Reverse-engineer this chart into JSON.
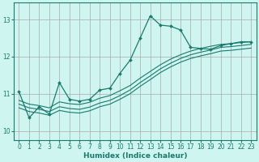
{
  "background_color": "#cef5f0",
  "grid_color": "#aaaaaa",
  "line_color": "#1a7a6e",
  "xlabel": "Humidex (Indice chaleur)",
  "xlim": [
    -0.5,
    23.5
  ],
  "ylim": [
    9.75,
    13.45
  ],
  "yticks": [
    10,
    11,
    12,
    13
  ],
  "xticks": [
    0,
    1,
    2,
    3,
    4,
    5,
    6,
    7,
    8,
    9,
    10,
    11,
    12,
    13,
    14,
    15,
    16,
    17,
    18,
    19,
    20,
    21,
    22,
    23
  ],
  "series": [
    {
      "x": [
        0,
        1,
        2,
        3,
        4,
        5,
        6,
        7,
        8,
        9,
        10,
        11,
        12,
        13,
        14,
        15,
        16,
        17,
        18,
        19,
        20,
        21,
        22,
        23
      ],
      "y": [
        11.05,
        10.35,
        10.65,
        10.45,
        11.3,
        10.85,
        10.8,
        10.85,
        11.1,
        11.15,
        11.55,
        11.9,
        12.5,
        13.1,
        12.85,
        12.82,
        12.72,
        12.25,
        12.22,
        12.2,
        12.3,
        12.35,
        12.4,
        12.4
      ],
      "marker": true
    },
    {
      "x": [
        0,
        1,
        2,
        3,
        4,
        5,
        6,
        7,
        8,
        9,
        10,
        11,
        12,
        13,
        14,
        15,
        16,
        17,
        18,
        19,
        20,
        21,
        22,
        23
      ],
      "y": [
        10.82,
        10.72,
        10.68,
        10.62,
        10.78,
        10.73,
        10.71,
        10.77,
        10.88,
        10.95,
        11.08,
        11.22,
        11.42,
        11.6,
        11.78,
        11.93,
        12.05,
        12.15,
        12.22,
        12.28,
        12.33,
        12.35,
        12.38,
        12.4
      ],
      "marker": false
    },
    {
      "x": [
        0,
        1,
        2,
        3,
        4,
        5,
        6,
        7,
        8,
        9,
        10,
        11,
        12,
        13,
        14,
        15,
        16,
        17,
        18,
        19,
        20,
        21,
        22,
        23
      ],
      "y": [
        10.72,
        10.62,
        10.58,
        10.52,
        10.65,
        10.6,
        10.58,
        10.64,
        10.75,
        10.82,
        10.95,
        11.1,
        11.3,
        11.48,
        11.67,
        11.82,
        11.95,
        12.05,
        12.12,
        12.18,
        12.25,
        12.27,
        12.3,
        12.33
      ],
      "marker": false
    },
    {
      "x": [
        0,
        1,
        2,
        3,
        4,
        5,
        6,
        7,
        8,
        9,
        10,
        11,
        12,
        13,
        14,
        15,
        16,
        17,
        18,
        19,
        20,
        21,
        22,
        23
      ],
      "y": [
        10.62,
        10.52,
        10.48,
        10.42,
        10.55,
        10.5,
        10.48,
        10.54,
        10.65,
        10.72,
        10.85,
        11.0,
        11.2,
        11.38,
        11.57,
        11.72,
        11.85,
        11.95,
        12.02,
        12.08,
        12.15,
        12.17,
        12.2,
        12.23
      ],
      "marker": false
    }
  ]
}
